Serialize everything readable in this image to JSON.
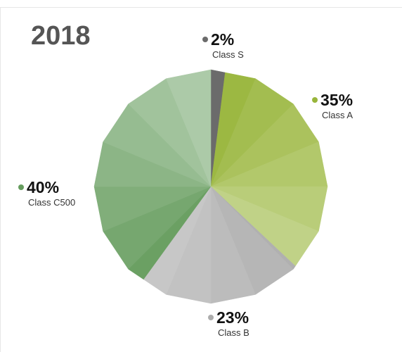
{
  "chart_data": {
    "type": "pie",
    "title": "2018",
    "categories": [
      "Class S",
      "Class A",
      "Class B",
      "Class C500"
    ],
    "values": [
      2,
      35,
      23,
      40
    ],
    "value_labels": [
      "2%",
      "35%",
      "23%",
      "40%"
    ],
    "colors": [
      "#6b6b6b",
      "#98b53a",
      "#adadad",
      "#659c5d"
    ]
  }
}
